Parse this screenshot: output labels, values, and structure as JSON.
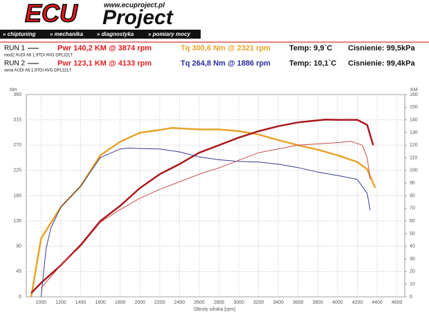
{
  "header": {
    "logo_ecu": "ECU",
    "logo_project": "Project",
    "url": "www.ecuproject.pl",
    "menu": [
      "» chiptuning",
      "» mechanika",
      "» diagnostyka",
      "» pomiary mocy"
    ]
  },
  "runs": [
    {
      "label": "RUN 1",
      "pwr": "Pwr 140,2 KM @ 3874 rpm",
      "tq": "Tq 300,6 Nm @ 2321 rpm",
      "temp": "Temp: 9,9`C",
      "pressure": "Cisnienie: 99,5kPa",
      "car": "mod2 AUDI A6 1.9TDI AVG DPL32LT"
    },
    {
      "label": "RUN 2",
      "pwr": "Pwr 123,1 KM @ 4133 rpm",
      "tq": "Tq 264,8 Nm @ 1886 rpm",
      "temp": "Temp: 10,1`C",
      "pressure": "Cisnienie: 99,4kPa",
      "car": "seria AUDI A6 1.9TDI AVG DPL32LT"
    }
  ],
  "chart_data": {
    "type": "line",
    "ylabel": "Nm",
    "y2label": "KM",
    "xlabel": "Obroty silnika [rpm]",
    "xlim": [
      850,
      4680
    ],
    "xticks": [
      1000,
      1200,
      1400,
      1600,
      1800,
      2000,
      2200,
      2400,
      2600,
      2800,
      3000,
      3200,
      3400,
      3600,
      3800,
      4000,
      4200,
      4400,
      4600
    ],
    "ylim": [
      0,
      360
    ],
    "yticks": [
      0,
      45,
      90,
      135,
      180,
      225,
      270,
      315,
      360
    ],
    "y2lim": [
      0,
      160
    ],
    "y2ticks": [
      0,
      10,
      20,
      30,
      40,
      50,
      60,
      70,
      80,
      90,
      100,
      110,
      120,
      130,
      140,
      150,
      160
    ],
    "grid": true,
    "series": [
      {
        "color": "#e8a128",
        "width": 2.5,
        "x": [
          900,
          1000,
          1200,
          1400,
          1600,
          1800,
          2000,
          2200,
          2321,
          2600,
          2800,
          3000,
          3200,
          3400,
          3600,
          3800,
          4000,
          4200,
          4300,
          4380
        ],
        "values": [
          0,
          104,
          160,
          197,
          252,
          276,
          292,
          297,
          300.6,
          298,
          298,
          295,
          289,
          279,
          270,
          262,
          252,
          240,
          227,
          194
        ]
      },
      {
        "color": "#a8161c",
        "width": 2.5,
        "axis": "y2",
        "x": [
          900,
          1000,
          1200,
          1400,
          1600,
          1800,
          2000,
          2200,
          2400,
          2600,
          2800,
          3000,
          3200,
          3400,
          3600,
          3874,
          4000,
          4200,
          4300,
          4360
        ],
        "values": [
          3,
          11,
          25,
          41,
          60,
          72,
          86,
          97,
          105,
          114,
          120,
          126,
          131,
          135,
          138,
          140.2,
          140,
          140,
          136,
          120
        ]
      },
      {
        "color": "#343a8c",
        "width": 1,
        "x": [
          1000,
          1050,
          1100,
          1200,
          1400,
          1600,
          1800,
          1886,
          2000,
          2200,
          2400,
          2600,
          2800,
          3000,
          3200,
          3400,
          3600,
          3800,
          4000,
          4200,
          4300,
          4330
        ],
        "values": [
          0,
          86,
          123,
          160,
          197,
          248,
          263,
          264.8,
          264,
          263,
          258,
          249,
          244,
          241,
          240,
          236,
          230,
          222,
          216,
          209,
          184,
          154
        ]
      },
      {
        "color": "#c84848",
        "width": 1,
        "axis": "y2",
        "x": [
          1000,
          1200,
          1400,
          1600,
          1800,
          2000,
          2200,
          2400,
          2600,
          2800,
          3000,
          3200,
          3400,
          3600,
          3800,
          4000,
          4133,
          4250,
          4300,
          4330
        ],
        "values": [
          7,
          25,
          40,
          59,
          69,
          78,
          85,
          91,
          97,
          102,
          108,
          114,
          117,
          120,
          121,
          122,
          123.1,
          120,
          110,
          93
        ]
      }
    ]
  }
}
